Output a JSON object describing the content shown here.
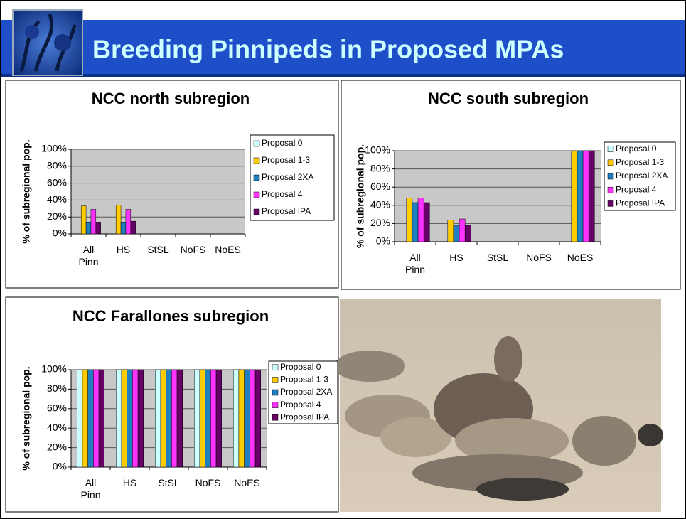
{
  "slide": {
    "title": "Breeding Pinnipeds in Proposed MPAs"
  },
  "chart_data": [
    {
      "type": "bar",
      "title": "NCC north subregion",
      "y_label": "% of subregional pop.",
      "categories": [
        "All Pinn",
        "HS",
        "StSL",
        "NoFS",
        "NoES"
      ],
      "ylim": [
        0,
        100
      ],
      "yticks": [
        {
          "value": 0,
          "label": "0%"
        },
        {
          "value": 20,
          "label": "20%"
        },
        {
          "value": 40,
          "label": "40%"
        },
        {
          "value": 60,
          "label": "60%"
        },
        {
          "value": 80,
          "label": "80%"
        },
        {
          "value": 100,
          "label": "100%"
        }
      ],
      "grid": true,
      "legend": "right",
      "series": [
        {
          "name": "Proposal 0",
          "color": "#ccffff",
          "values": [
            0,
            0,
            0,
            0,
            0
          ]
        },
        {
          "name": "Proposal 1-3",
          "color": "#ffcc00",
          "values": [
            33,
            34,
            0,
            0,
            0
          ]
        },
        {
          "name": "Proposal 2XA",
          "color": "#1f7fc0",
          "values": [
            14,
            14,
            0,
            0,
            0
          ]
        },
        {
          "name": "Proposal 4",
          "color": "#ff33ff",
          "values": [
            29,
            29,
            0,
            0,
            0
          ]
        },
        {
          "name": "Proposal IPA",
          "color": "#660066",
          "values": [
            14,
            15,
            0,
            0,
            0
          ]
        }
      ]
    },
    {
      "type": "bar",
      "title": "NCC south subregion",
      "y_label": "% of subregional pop.",
      "categories": [
        "All Pinn",
        "HS",
        "StSL",
        "NoFS",
        "NoES"
      ],
      "ylim": [
        0,
        100
      ],
      "yticks": [
        {
          "value": 0,
          "label": "0%"
        },
        {
          "value": 20,
          "label": "20%"
        },
        {
          "value": 40,
          "label": "40%"
        },
        {
          "value": 60,
          "label": "60%"
        },
        {
          "value": 80,
          "label": "80%"
        },
        {
          "value": 100,
          "label": "100%"
        }
      ],
      "grid": true,
      "legend": "right",
      "series": [
        {
          "name": "Proposal 0",
          "color": "#ccffff",
          "values": [
            0,
            0,
            0,
            0,
            0
          ]
        },
        {
          "name": "Proposal 1-3",
          "color": "#ffcc00",
          "values": [
            48,
            24,
            0,
            0,
            100
          ]
        },
        {
          "name": "Proposal 2XA",
          "color": "#1f7fc0",
          "values": [
            43,
            18,
            0,
            0,
            100
          ]
        },
        {
          "name": "Proposal 4",
          "color": "#ff33ff",
          "values": [
            48,
            25,
            0,
            0,
            100
          ]
        },
        {
          "name": "Proposal IPA",
          "color": "#660066",
          "values": [
            43,
            18,
            0,
            0,
            100
          ]
        }
      ]
    },
    {
      "type": "bar",
      "title": "NCC Farallones subregion",
      "y_label": "% of subregional pop.",
      "categories": [
        "All Pinn",
        "HS",
        "StSL",
        "NoFS",
        "NoES"
      ],
      "ylim": [
        0,
        100
      ],
      "yticks": [
        {
          "value": 0,
          "label": "0%"
        },
        {
          "value": 20,
          "label": "20%"
        },
        {
          "value": 40,
          "label": "40%"
        },
        {
          "value": 60,
          "label": "60%"
        },
        {
          "value": 80,
          "label": "80%"
        },
        {
          "value": 100,
          "label": "100%"
        }
      ],
      "grid": true,
      "legend": "right",
      "series": [
        {
          "name": "Proposal 0",
          "color": "#ccffff",
          "values": [
            100,
            100,
            100,
            100,
            100
          ]
        },
        {
          "name": "Proposal 1-3",
          "color": "#ffcc00",
          "values": [
            100,
            100,
            100,
            100,
            100
          ]
        },
        {
          "name": "Proposal 2XA",
          "color": "#1f7fc0",
          "values": [
            100,
            100,
            100,
            100,
            100
          ]
        },
        {
          "name": "Proposal 4",
          "color": "#ff33ff",
          "values": [
            100,
            100,
            100,
            100,
            100
          ]
        },
        {
          "name": "Proposal IPA",
          "color": "#660066",
          "values": [
            100,
            100,
            100,
            100,
            100
          ]
        }
      ]
    }
  ]
}
